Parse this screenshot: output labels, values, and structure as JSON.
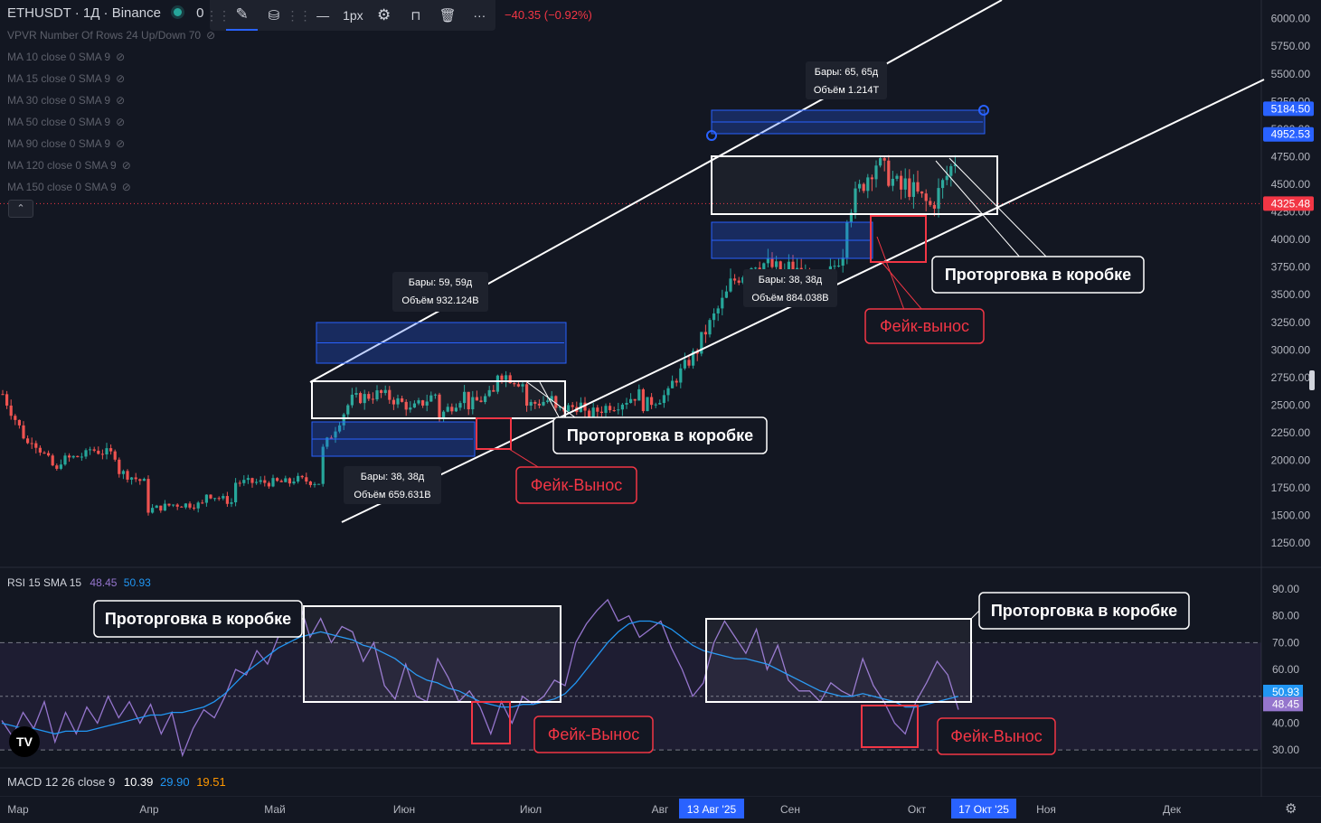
{
  "header": {
    "symbol": "ETHUSDT · 1Д · Binance",
    "o_prefix": "0",
    "change": "−40.35 (−0.92%)",
    "change_color": "#f23645"
  },
  "toolbar": {
    "items": [
      {
        "name": "pencil-icon",
        "glyph": "✎"
      },
      {
        "name": "paint-bucket-icon",
        "glyph": "⛁"
      },
      {
        "name": "grid-icon",
        "glyph": "⋮⋮"
      },
      {
        "name": "line-style-icon",
        "glyph": "—"
      },
      {
        "name": "line-width",
        "glyph": "1px"
      },
      {
        "name": "gear-icon",
        "glyph": "⚙"
      },
      {
        "name": "lock-icon",
        "glyph": "🔓"
      },
      {
        "name": "trash-icon",
        "glyph": "🗑"
      },
      {
        "name": "more-icon",
        "glyph": "···"
      }
    ]
  },
  "indicators": [
    "VPVR Number Of Rows 24 Up/Down 70",
    "MA 10 close 0 SMA 9",
    "MA 15 close 0 SMA 9",
    "MA 30 close 0 SMA 9",
    "MA 50 close 0 SMA 9",
    "MA 90 close 0 SMA 9",
    "MA 120 close 0 SMA 9",
    "MA 150 close 0 SMA 9"
  ],
  "rsi_legend": {
    "label": "RSI 15 SMA 15",
    "v1": "48.45",
    "v2": "50.93",
    "c1": "#9575cd",
    "c2": "#2196f3"
  },
  "macd_legend": {
    "label": "MACD 12 26 close 9",
    "v1": "10.39",
    "v2": "29.90",
    "v3": "19.51",
    "c1": "#ffffff",
    "c2": "#2196f3",
    "c3": "#ff9800"
  },
  "colors": {
    "up": "#26a69a",
    "down": "#ef5350",
    "bg": "#131722",
    "accent_blue": "#2962ff"
  },
  "chart_data": [
    {
      "type": "candlestick",
      "panel": "price",
      "y_ticks": [
        6000,
        5750,
        5500,
        5250,
        5000,
        4750,
        4500,
        4250,
        4000,
        3750,
        3500,
        3250,
        3000,
        2750,
        2500,
        2250,
        2000,
        1750,
        1500,
        1250
      ],
      "y_tick_labels": [
        "6000.00",
        "5750.00",
        "5500.00",
        "5250.00",
        "5000.00",
        "4750.00",
        "4500.00",
        "4250.00",
        "4000.00",
        "3750.00",
        "3500.00",
        "3250.00",
        "3000.00",
        "2750.00",
        "2500.00",
        "2250.00",
        "2000.00",
        "1750.00",
        "1500.00",
        "1250.00"
      ],
      "ylim": [
        1080,
        6120
      ],
      "x_labels": [
        "Мар",
        "Апр",
        "Май",
        "Июн",
        "Июл",
        "Авг",
        "13 Авг '25",
        "Сен",
        "Окт",
        "17 Окт '25",
        "Ноя",
        "Дек"
      ],
      "price_labels": [
        {
          "text": "5184.50",
          "value": 5184.5,
          "color": "#2962ff"
        },
        {
          "text": "4952.53",
          "value": 4952.53,
          "color": "#2962ff"
        },
        {
          "text": "4325.48",
          "value": 4325.48,
          "color": "#f23645"
        }
      ],
      "close_path": [
        [
          2600,
          2150
        ],
        [
          2200,
          1900
        ],
        [
          2000,
          2050
        ],
        [
          2100,
          2050
        ],
        [
          1900,
          1800
        ],
        [
          1550,
          1600
        ],
        [
          1600,
          1600
        ],
        [
          1700,
          1620
        ],
        [
          1800,
          1800
        ],
        [
          1800,
          1800
        ],
        [
          1830,
          1800
        ],
        [
          2100,
          2500
        ],
        [
          2550,
          2600
        ],
        [
          2600,
          2500
        ],
        [
          2450,
          2600
        ],
        [
          2400,
          2600
        ],
        [
          2500,
          2600
        ],
        [
          2800,
          2700
        ],
        [
          2500,
          2550
        ],
        [
          2450,
          2500
        ],
        [
          2400,
          2500
        ],
        [
          2500,
          2600
        ],
        [
          2500,
          2600
        ],
        [
          2700,
          3000
        ],
        [
          3100,
          3500
        ],
        [
          3600,
          3800
        ],
        [
          3800,
          3700
        ],
        [
          3750,
          3600
        ],
        [
          3500,
          3900
        ],
        [
          4250,
          4650
        ],
        [
          4700,
          4450
        ],
        [
          4500,
          4300
        ],
        [
          4350,
          4800
        ],
        [
          4600,
          4400
        ],
        [
          4500,
          4300
        ],
        [
          4350,
          4400
        ],
        [
          4450,
          4650
        ],
        [
          4700,
          4600
        ],
        [
          4500,
          4550
        ],
        [
          4350,
          4250
        ],
        [
          4150,
          4000
        ],
        [
          4050,
          4200
        ],
        [
          4400,
          4600
        ],
        [
          4650,
          4450
        ],
        [
          4400,
          4330
        ]
      ],
      "annotations": [
        {
          "kind": "measure",
          "lines": [
            "Бары: 65, 65д",
            "Объём 1.214T"
          ]
        },
        {
          "kind": "measure",
          "lines": [
            "Бары: 59, 59д",
            "Объём 932.124B"
          ]
        },
        {
          "kind": "measure",
          "lines": [
            "Бары: 38, 38д",
            "Объём 884.038B"
          ]
        },
        {
          "kind": "measure",
          "lines": [
            "Бары: 38, 38д",
            "Объём 659.631B"
          ]
        },
        {
          "kind": "callout",
          "text": "Проторговка в коробке",
          "color": "#ffffff"
        },
        {
          "kind": "callout",
          "text": "Проторговка в коробке",
          "color": "#ffffff"
        },
        {
          "kind": "callout",
          "text": "Фейк-вынос",
          "color": "#f23645"
        },
        {
          "kind": "callout",
          "text": "Фейк-Вынос",
          "color": "#f23645"
        }
      ]
    },
    {
      "type": "line",
      "panel": "rsi",
      "ylim": [
        24,
        94
      ],
      "y_ticks": [
        90,
        80,
        70,
        60,
        50,
        40,
        30
      ],
      "y_tick_labels": [
        "90.00",
        "80.00",
        "70.00",
        "60.00",
        "50.00",
        "40.00",
        "30.00"
      ],
      "bands": [
        70,
        30
      ],
      "midline": 50,
      "value_labels": [
        {
          "text": "50.93",
          "value": 50.93,
          "color": "#2196f3"
        },
        {
          "text": "48.45",
          "value": 48.45,
          "color": "#9575cd"
        }
      ],
      "series": [
        {
          "name": "RSI",
          "color": "#9575cd",
          "values": [
            41,
            35,
            44,
            38,
            48,
            33,
            44,
            36,
            46,
            40,
            50,
            42,
            48,
            40,
            47,
            36,
            44,
            28,
            38,
            45,
            42,
            50,
            60,
            58,
            67,
            62,
            72,
            78,
            85,
            72,
            79,
            70,
            76,
            74,
            63,
            70,
            54,
            49,
            62,
            50,
            48,
            64,
            57,
            48,
            52,
            46,
            36,
            48,
            40,
            50,
            47,
            50,
            56,
            54,
            70,
            77,
            82,
            86,
            78,
            80,
            72,
            75,
            78,
            68,
            60,
            50,
            55,
            70,
            78,
            72,
            66,
            75,
            60,
            69,
            56,
            52,
            52,
            48,
            55,
            52,
            50,
            64,
            54,
            48,
            40,
            36,
            48,
            55,
            63,
            58,
            45
          ]
        },
        {
          "name": "RSI-SMA",
          "color": "#2196f3",
          "values": [
            40,
            39,
            38,
            38,
            37,
            36,
            37,
            37,
            37,
            38,
            39,
            40,
            41,
            42,
            43,
            43,
            44,
            44,
            45,
            46,
            48,
            51,
            55,
            59,
            62,
            65,
            68,
            70,
            72,
            73,
            74,
            73,
            72,
            71,
            69,
            68,
            66,
            64,
            61,
            58,
            56,
            55,
            53,
            52,
            50,
            48,
            47,
            46,
            46,
            47,
            47,
            48,
            49,
            51,
            55,
            60,
            65,
            70,
            74,
            77,
            78,
            78,
            77,
            75,
            72,
            69,
            67,
            66,
            65,
            64,
            64,
            63,
            62,
            60,
            58,
            56,
            54,
            52,
            51,
            50,
            50,
            51,
            50,
            49,
            48,
            46,
            46,
            47,
            48,
            49,
            50
          ]
        }
      ],
      "annotations": [
        {
          "kind": "callout",
          "text": "Проторговка в коробке",
          "color": "#ffffff"
        },
        {
          "kind": "callout",
          "text": "Проторговка в коробке",
          "color": "#ffffff"
        },
        {
          "kind": "callout",
          "text": "Фейк-Вынос",
          "color": "#f23645"
        },
        {
          "kind": "callout",
          "text": "Фейк-Вынос",
          "color": "#f23645"
        }
      ]
    }
  ]
}
